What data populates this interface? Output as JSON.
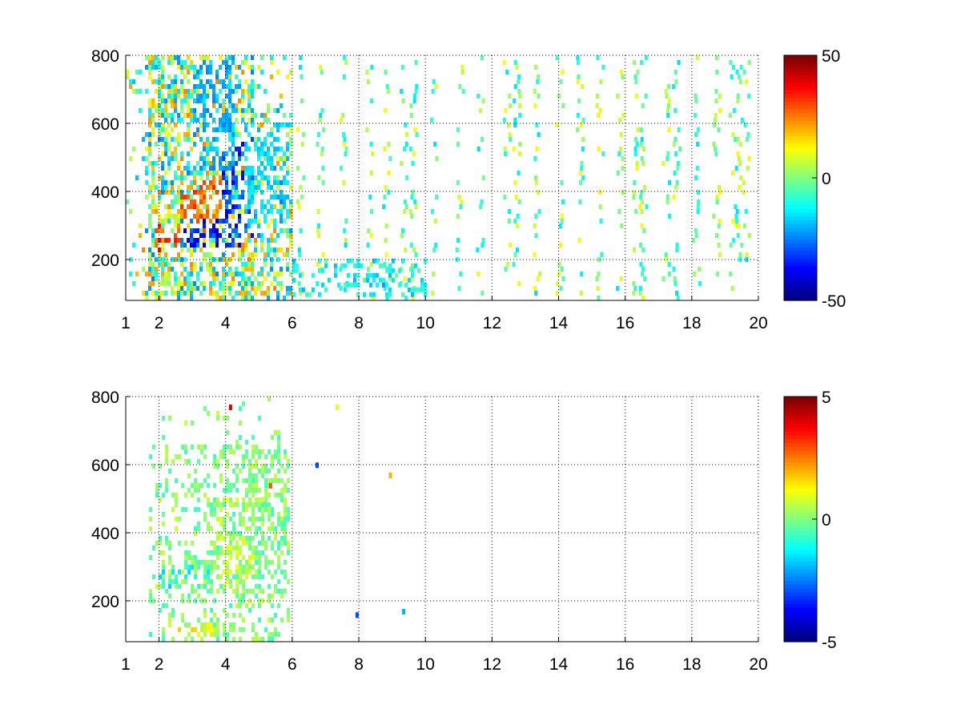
{
  "chart_data": [
    {
      "type": "heatmap",
      "title": "",
      "xlabel": "",
      "ylabel": "",
      "xlim": [
        1,
        20
      ],
      "ylim": [
        80,
        800
      ],
      "xticks": [
        1,
        2,
        4,
        6,
        8,
        10,
        12,
        14,
        16,
        18,
        20
      ],
      "xtick_labels": [
        "1",
        "2",
        "4",
        "6",
        "8",
        "10",
        "12",
        "14",
        "16",
        "18",
        "20"
      ],
      "yticks": [
        200,
        400,
        600,
        800
      ],
      "ytick_labels": [
        "200",
        "400",
        "600",
        "800"
      ],
      "grid": true,
      "colormap": "jet",
      "clim": [
        -50,
        50
      ],
      "colorbar_ticks": [
        -50,
        0,
        50
      ],
      "colorbar_labels": [
        "-50",
        "0",
        "50"
      ],
      "features": [
        {
          "x": [
            1.8,
            2.6
          ],
          "y": [
            220,
            300
          ],
          "value": 40
        },
        {
          "x": [
            2.6,
            4.0
          ],
          "y": [
            250,
            420
          ],
          "value": 35
        },
        {
          "x": [
            2.6,
            4.4
          ],
          "y": [
            230,
            320
          ],
          "value": -45
        },
        {
          "x": [
            3.8,
            4.8
          ],
          "y": [
            250,
            550
          ],
          "value": -40
        },
        {
          "x": [
            3.0,
            4.2
          ],
          "y": [
            450,
            780
          ],
          "value": -25
        },
        {
          "x": [
            4.5,
            5.9
          ],
          "y": [
            280,
            600
          ],
          "value": -20
        }
      ],
      "sparse_columns_x": [
        6.2,
        6.8,
        7.5,
        8.3,
        8.8,
        9.3,
        9.6,
        10.2,
        11.0,
        11.6,
        12.4,
        12.7,
        13.3,
        14.0,
        14.6,
        15.2,
        15.8,
        16.3,
        16.5,
        17.2,
        17.5,
        18.1,
        18.7,
        19.2,
        19.4,
        19.6
      ],
      "low_band_y": [
        90,
        190
      ],
      "low_band_value": -15
    },
    {
      "type": "heatmap",
      "title": "",
      "xlabel": "",
      "ylabel": "",
      "xlim": [
        1,
        20
      ],
      "ylim": [
        80,
        800
      ],
      "xticks": [
        1,
        2,
        4,
        6,
        8,
        10,
        12,
        14,
        16,
        18,
        20
      ],
      "xtick_labels": [
        "1",
        "2",
        "4",
        "6",
        "8",
        "10",
        "12",
        "14",
        "16",
        "18",
        "20"
      ],
      "yticks": [
        200,
        400,
        600,
        800
      ],
      "ytick_labels": [
        "200",
        "400",
        "600",
        "800"
      ],
      "grid": true,
      "colormap": "jet",
      "clim": [
        -5,
        5
      ],
      "colorbar_ticks": [
        -5,
        0,
        5
      ],
      "colorbar_labels": [
        "-5",
        "0",
        "5"
      ],
      "features": [
        {
          "x": [
            1.9,
            3.6
          ],
          "y": [
            230,
            300
          ],
          "value": -1
        },
        {
          "x": [
            3.6,
            4.8
          ],
          "y": [
            240,
            500
          ],
          "value": 0.5
        },
        {
          "x": [
            4.5,
            5.8
          ],
          "y": [
            300,
            640
          ],
          "value": 0
        },
        {
          "x": [
            1.8,
            4.0
          ],
          "y": [
            90,
            130
          ],
          "value": 1
        }
      ],
      "sparse_points": [
        {
          "x": 4.1,
          "y": 760,
          "value": 4
        },
        {
          "x": 5.3,
          "y": 530,
          "value": 3
        },
        {
          "x": 7.3,
          "y": 760,
          "value": 1
        },
        {
          "x": 8.9,
          "y": 560,
          "value": 2
        },
        {
          "x": 7.9,
          "y": 150,
          "value": -3
        },
        {
          "x": 9.3,
          "y": 160,
          "value": -2
        },
        {
          "x": 6.7,
          "y": 590,
          "value": -3
        }
      ]
    }
  ]
}
